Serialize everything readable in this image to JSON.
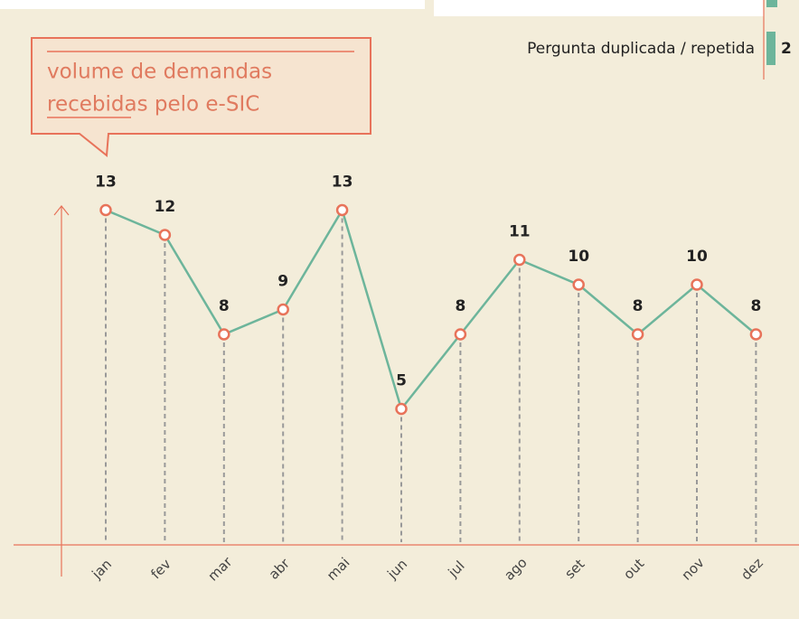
{
  "chart_data": {
    "type": "line",
    "title_lines": [
      "volume de demandas",
      "recebidas pelo e-SIC"
    ],
    "categories": [
      "jan",
      "fev",
      "mar",
      "abr",
      "mai",
      "jun",
      "jul",
      "ago",
      "set",
      "out",
      "nov",
      "dez"
    ],
    "values": [
      13,
      12,
      8,
      9,
      13,
      5,
      8,
      11,
      10,
      8,
      10,
      8
    ],
    "color": "#6db59b",
    "marker_color": "#e8735a",
    "ylim": [
      0,
      14
    ]
  },
  "side_item": {
    "label": "Pergunta duplicada / repetida",
    "value": 2,
    "color": "#6db59b"
  }
}
